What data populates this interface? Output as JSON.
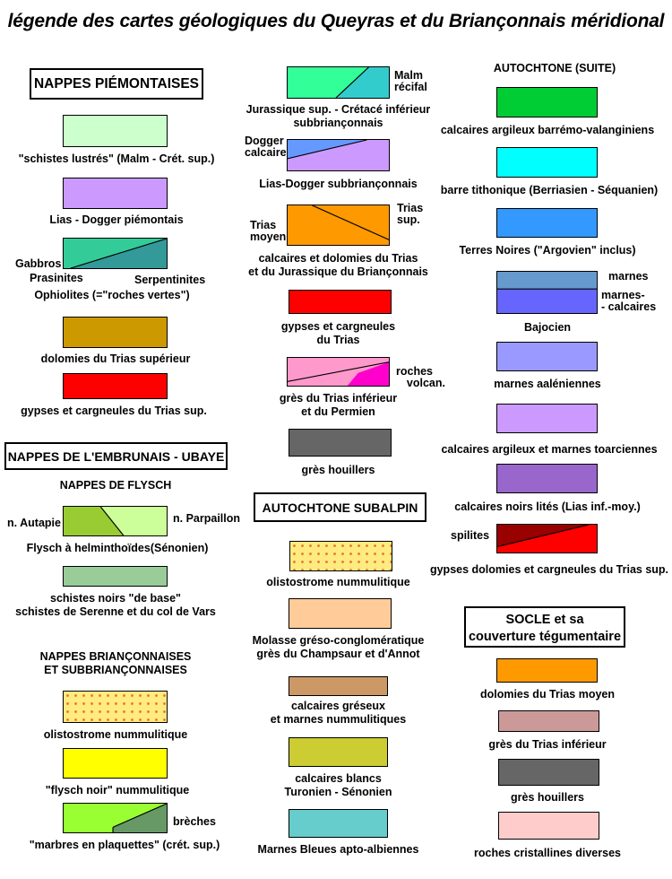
{
  "title": "légende des cartes géologiques du Queyras et du Briançonnais méridional",
  "headers": {
    "piemontaises": "NAPPES PIÉMONTAISES",
    "embrunais": "NAPPES DE L'EMBRUNAIS - UBAYE",
    "autochtone_subalpin": "AUTOCHTONE  SUBALPIN",
    "autochtone_suite": "AUTOCHTONE (SUITE)",
    "socle_line1": "SOCLE et sa",
    "socle_line2": "couverture tégumentaire"
  },
  "subheaders": {
    "flysch": "NAPPES DE FLYSCH",
    "brianconnaises_line1": "NAPPES BRIANÇONNAISES",
    "brianconnaises_line2": "ET SUBBRIANÇONNAISES"
  },
  "colors": {
    "schistes_lustres": "#ccffcc",
    "lias_dogger_piemontais": "#cc99ff",
    "gabbros": "#33cc99",
    "serpentinites": "#339999",
    "dolomies_trias_sup": "#cc9900",
    "gypses_red": "#ff0000",
    "n_autapie": "#99cc33",
    "n_parpaillon": "#ccff99",
    "schistes_noirs": "#99cc99",
    "flysch_noir": "#ffff00",
    "marbres": "#99ff33",
    "breches": "#669966",
    "jurassique_sup": "#33ff99",
    "malm_recifal": "#33cccc",
    "dogger_calcaire": "#6699ff",
    "lias_dogger_subbrianconnais": "#cc99ff",
    "trias_moyen": "#ff9900",
    "gres_trias_inf": "#ff99cc",
    "roches_volcan": "#ff00cc",
    "gres_houillers": "#666666",
    "molasse": "#ffcc99",
    "calcaires_greseux": "#cc9966",
    "calcaires_blancs": "#cccc33",
    "marnes_bleues": "#66cccc",
    "calcaires_argileux_barremo": "#00cc33",
    "barre_tithonique": "#00ffff",
    "terres_noires": "#3399ff",
    "bajocien_marnes": "#6699cc",
    "bajocien_marnes_calcaires": "#6666ff",
    "marnes_aaleniennes": "#9999ff",
    "calcaires_toarciennes": "#cc99ff",
    "calcaires_noirs_lites": "#9966cc",
    "spilites": "#990000",
    "gypses_dolomies_trias_sup": "#ff0000",
    "socle_dolomies": "#ff9900",
    "socle_gres_trias_inf": "#cc9999",
    "socle_gres_houillers": "#666666",
    "roches_cristallines": "#ffcccc"
  },
  "labels": {
    "schistes_lustres": "\"schistes lustrés\" (Malm - Crét. sup.)",
    "lias_dogger_piemontais": "Lias - Dogger piémontais",
    "gabbros": "Gabbros",
    "prasinites": "Prasinites",
    "serpentinites": "Serpentinites",
    "ophiolites": "Ophiolites (=\"roches vertes\")",
    "dolomies_trias_sup": "dolomies du Trias supérieur",
    "gypses_trias_sup": "gypses  et cargneules  du Trias sup.",
    "n_autapie": "n. Autapie",
    "n_parpaillon": "n. Parpaillon",
    "flysch_helminthoides": "Flysch à helminthoïdes(Sénonien)",
    "schistes_noirs_line1": "schistes noirs \"de base\"",
    "schistes_noirs_line2": "schistes de Serenne et du col de Vars",
    "olistostrome_left": "olistostrome nummulitique",
    "flysch_noir": "\"flysch noir\"  nummulitique",
    "breches": "brèches",
    "marbres": "\"marbres en plaquettes\" (crét. sup.)",
    "malm_line1": "Malm",
    "malm_line2": "récifal",
    "jurassique_line1": "Jurassique sup. - Crétacé inférieur",
    "jurassique_line2": "subbriançonnais",
    "dogger_line1": "Dogger",
    "dogger_line2": "calcaire",
    "lias_dogger_subbrianconnais": "Lias-Dogger subbriançonnais",
    "trias_moyen_line1": "Trias",
    "trias_moyen_line2": "moyen",
    "trias_sup_line1": "Trias",
    "trias_sup_line2": "sup.",
    "calcaires_dolomies_line1": "calcaires  et dolomies du Trias",
    "calcaires_dolomies_line2": "et du Jurassique  du  Briançonnais",
    "gypses_trias_line1": "gypses  et cargneules",
    "gypses_trias_line2": "du Trias",
    "roches_volcan_line1": "roches",
    "roches_volcan_line2": "volcan.",
    "gres_trias_line1": "grès  du  Trias inférieur",
    "gres_trias_line2": "et du Permien",
    "gres_houillers_mid": "grès houillers",
    "olistostrome_mid": "olistostrome nummulitique",
    "molasse_line1": "Molasse  gréso-conglomératique",
    "molasse_line2": "grès  du Champsaur et d'Annot",
    "calcaires_greseux_line1": "calcaires  gréseux",
    "calcaires_greseux_line2": "et marnes  nummulitiques",
    "calcaires_blancs_line1": "calcaires blancs",
    "calcaires_blancs_line2": "Turonien  -  Sénonien",
    "marnes_bleues": "Marnes Bleues  apto-albiennes",
    "calcaires_argileux_barremo": "calcaires  argileux  barrémo-valanginiens",
    "barre_tithonique": "barre tithonique (Berriasien - Séquanien)",
    "terres_noires": "Terres Noires (\"Argovien\" inclus)",
    "marnes": "marnes",
    "marnes_calcaires_line1": "marnes-",
    "marnes_calcaires_line2": "- calcaires",
    "bajocien": "Bajocien",
    "marnes_aaleniennes": "marnes aaléniennes",
    "calcaires_toarciennes": "calcaires argileux et marnes toarciennes",
    "calcaires_noirs_lites": "calcaires noirs lités (Lias inf.-moy.)",
    "spilites": "spilites",
    "gypses_dolomies_trias_sup": "gypses  dolomies  et cargneules du Trias sup.",
    "socle_dolomies": "dolomies  du Trias moyen",
    "socle_gres_trias_inf": "grès  du  Trias  inférieur",
    "socle_gres_houillers": "grès houillers",
    "roches_cristallines": "roches cristallines  diverses"
  }
}
